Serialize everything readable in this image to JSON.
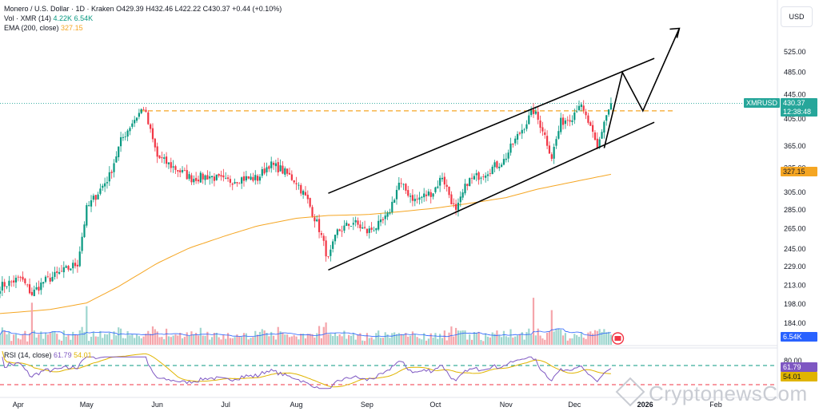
{
  "legend": {
    "symbol": "Monero / U.S. Dollar · 1D · Kraken",
    "ohlc": "O429.39 H432.46 L422.22 C430.37 +0.44 (+0.10%)",
    "vol_label": "Vol · XMR (14)",
    "vol_value1": "4.22K",
    "vol_value2": "6.54K",
    "ema_label": "EMA (200, close)",
    "ema_value": "327.15",
    "rsi_label": "RSI (14, close)",
    "rsi_value1": "61.79",
    "rsi_value2": "54.01"
  },
  "currency": "USD",
  "price_tags": {
    "symbol": "XMRUSD",
    "last": "430.37",
    "countdown": "12:38:48",
    "ema": "327.15",
    "volume": "6.54K",
    "rsi": "61.79",
    "rsi_ma": "54.01"
  },
  "watermark": "CryptonewsCom",
  "colors": {
    "up": "#089981",
    "down": "#f23645",
    "ema": "#f5a623",
    "rsi": "#7e57c2",
    "rsi_ma": "#e0b400",
    "level": "#f5a623"
  },
  "chart_data": {
    "type": "candlestick",
    "series_name": "XMRUSD",
    "price_ticks": [
      525.0,
      485.0,
      445.0,
      405.0,
      365.0,
      335.0,
      305.0,
      285.0,
      265.0,
      245.0,
      229.0,
      213.0,
      198.0,
      184.0
    ],
    "price_tick_labels": [
      "525.00",
      "485.00",
      "445.00",
      "405.00",
      "365.00",
      "335.00",
      "305.00",
      "285.00",
      "265.00",
      "245.00",
      "229.00",
      "213.00",
      "198.00",
      "184.00"
    ],
    "y_scale": "log",
    "rsi_ticks": [
      80
    ],
    "rsi_tick_labels": [
      "80.00"
    ],
    "months": [
      "Apr",
      "May",
      "Jun",
      "Jul",
      "Aug",
      "Sep",
      "Oct",
      "Nov",
      "Dec",
      "2026",
      "Feb"
    ],
    "x_range": [
      "2025-03-24",
      "2026-02-28"
    ],
    "last_price": 430.37,
    "ema_last": 327.15,
    "horizontal_level": 418,
    "rsi_levels": [
      70,
      30
    ],
    "channel_upper": [
      [
        "2025-08-15",
        304
      ],
      [
        "2026-01-05",
        512
      ]
    ],
    "channel_lower": [
      [
        "2025-08-15",
        226
      ],
      [
        "2026-01-05",
        400
      ]
    ],
    "projection_path": [
      [
        "2025-12-14",
        362
      ],
      [
        "2025-12-22",
        485
      ],
      [
        "2025-12-31",
        418
      ],
      [
        "2026-01-16",
        575
      ]
    ],
    "anchors": [
      [
        "2025-03-24",
        212
      ],
      [
        "2025-04-02",
        219
      ],
      [
        "2025-04-07",
        206
      ],
      [
        "2025-04-12",
        216
      ],
      [
        "2025-04-20",
        224
      ],
      [
        "2025-04-27",
        232
      ],
      [
        "2025-05-01",
        286
      ],
      [
        "2025-05-06",
        305
      ],
      [
        "2025-05-11",
        325
      ],
      [
        "2025-05-16",
        372
      ],
      [
        "2025-05-21",
        400
      ],
      [
        "2025-05-26",
        424
      ],
      [
        "2025-05-29",
        385
      ],
      [
        "2025-06-01",
        350
      ],
      [
        "2025-06-06",
        340
      ],
      [
        "2025-06-16",
        322
      ],
      [
        "2025-06-24",
        325
      ],
      [
        "2025-07-01",
        318
      ],
      [
        "2025-07-08",
        322
      ],
      [
        "2025-07-15",
        322
      ],
      [
        "2025-07-20",
        340
      ],
      [
        "2025-07-25",
        334
      ],
      [
        "2025-08-01",
        318
      ],
      [
        "2025-08-06",
        295
      ],
      [
        "2025-08-11",
        265
      ],
      [
        "2025-08-15",
        235
      ],
      [
        "2025-08-19",
        262
      ],
      [
        "2025-08-26",
        272
      ],
      [
        "2025-09-01",
        262
      ],
      [
        "2025-09-07",
        270
      ],
      [
        "2025-09-10",
        278
      ],
      [
        "2025-09-15",
        316
      ],
      [
        "2025-09-22",
        296
      ],
      [
        "2025-09-30",
        306
      ],
      [
        "2025-10-04",
        325
      ],
      [
        "2025-10-10",
        282
      ],
      [
        "2025-10-15",
        318
      ],
      [
        "2025-10-23",
        330
      ],
      [
        "2025-10-31",
        345
      ],
      [
        "2025-11-04",
        368
      ],
      [
        "2025-11-09",
        395
      ],
      [
        "2025-11-13",
        418
      ],
      [
        "2025-11-17",
        390
      ],
      [
        "2025-11-21",
        350
      ],
      [
        "2025-11-25",
        400
      ],
      [
        "2025-11-30",
        410
      ],
      [
        "2025-12-03",
        430
      ],
      [
        "2025-12-07",
        400
      ],
      [
        "2025-12-11",
        360
      ],
      [
        "2025-12-14",
        402
      ],
      [
        "2025-12-17",
        430
      ]
    ],
    "ema_anchors": [
      [
        "2025-03-24",
        191
      ],
      [
        "2025-04-15",
        194
      ],
      [
        "2025-05-01",
        199
      ],
      [
        "2025-05-15",
        212
      ],
      [
        "2025-06-01",
        232
      ],
      [
        "2025-06-15",
        246
      ],
      [
        "2025-07-01",
        258
      ],
      [
        "2025-07-15",
        268
      ],
      [
        "2025-08-01",
        276
      ],
      [
        "2025-08-15",
        279
      ],
      [
        "2025-09-01",
        280
      ],
      [
        "2025-09-15",
        283
      ],
      [
        "2025-10-01",
        287
      ],
      [
        "2025-10-15",
        292
      ],
      [
        "2025-11-01",
        299
      ],
      [
        "2025-11-15",
        309
      ],
      [
        "2025-12-01",
        318
      ],
      [
        "2025-12-17",
        327.15
      ]
    ],
    "volume_spikes": [
      [
        "2025-04-07",
        8.5
      ],
      [
        "2025-05-01",
        7.8
      ],
      [
        "2025-11-13",
        9.5
      ],
      [
        "2025-11-21",
        7.0
      ],
      [
        "2025-08-13",
        3.6
      ],
      [
        "2025-10-10",
        3.4
      ]
    ]
  }
}
